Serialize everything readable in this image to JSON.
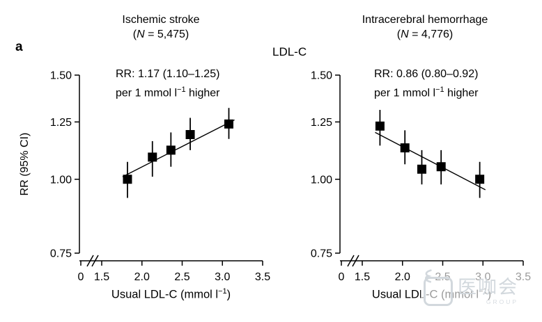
{
  "figure": {
    "panel_label": "a",
    "exposure_label": "LDL-C",
    "watermark": {
      "text": "医咖会",
      "subtext": "GROUP"
    }
  },
  "shared_axes": {
    "ylabel": "RR (95% CI)",
    "xlabel_parts": {
      "prefix": "Usual LDL-C (mmol l",
      "sup": "−1",
      "suffix": ")"
    },
    "yscale": "log",
    "ylim": [
      0.75,
      1.5
    ],
    "x_axis_break_after_zero": true,
    "grid": false,
    "marker": "filled-square",
    "color": "#000000",
    "y_ticks": [
      {
        "label": "1.50",
        "value": 1.5
      },
      {
        "label": "1.25",
        "value": 1.25
      },
      {
        "label": "1.00",
        "value": 1.0
      },
      {
        "label": "0.75",
        "value": 0.75
      }
    ],
    "x_ticks": [
      {
        "label": "0",
        "value": 0
      },
      {
        "label": "1.5",
        "value": 1.5
      },
      {
        "label": "2.0",
        "value": 2.0
      },
      {
        "label": "2.5",
        "value": 2.5
      },
      {
        "label": "3.0",
        "value": 3.0
      },
      {
        "label": "3.5",
        "value": 3.5
      }
    ]
  },
  "chart_data": [
    {
      "type": "scatter",
      "title": "Ischemic stroke",
      "n_parts": {
        "open": "(",
        "n": "N",
        "rest": " = 5,475)"
      },
      "annotation": {
        "line1": "RR: 1.17 (1.10–1.25)",
        "line2_prefix": "per 1 mmol l",
        "line2_sup": "−1",
        "line2_suffix": " higher"
      },
      "x": [
        1.82,
        2.13,
        2.36,
        2.6,
        3.08
      ],
      "y": [
        1.0,
        1.09,
        1.12,
        1.19,
        1.24
      ],
      "ci_low": [
        0.93,
        1.01,
        1.05,
        1.12,
        1.17
      ],
      "ci_high": [
        1.07,
        1.16,
        1.2,
        1.27,
        1.32
      ],
      "trend": {
        "x1": 1.76,
        "y1": 1.01,
        "x2": 3.15,
        "y2": 1.26
      }
    },
    {
      "type": "scatter",
      "title": "Intracerebral hemorrhage",
      "n_parts": {
        "open": "(",
        "n": "N",
        "rest": " = 4,776)"
      },
      "annotation": {
        "line1": "RR: 0.86 (0.80–0.92)",
        "line2_prefix": "per 1 mmol l",
        "line2_sup": "−1",
        "line2_suffix": " higher"
      },
      "x": [
        1.72,
        2.03,
        2.24,
        2.48,
        2.96
      ],
      "y": [
        1.23,
        1.13,
        1.04,
        1.05,
        1.0
      ],
      "ci_low": [
        1.14,
        1.06,
        0.98,
        0.98,
        0.93
      ],
      "ci_high": [
        1.31,
        1.21,
        1.12,
        1.12,
        1.07
      ],
      "trend": {
        "x1": 1.66,
        "y1": 1.2,
        "x2": 3.03,
        "y2": 0.96
      }
    }
  ]
}
